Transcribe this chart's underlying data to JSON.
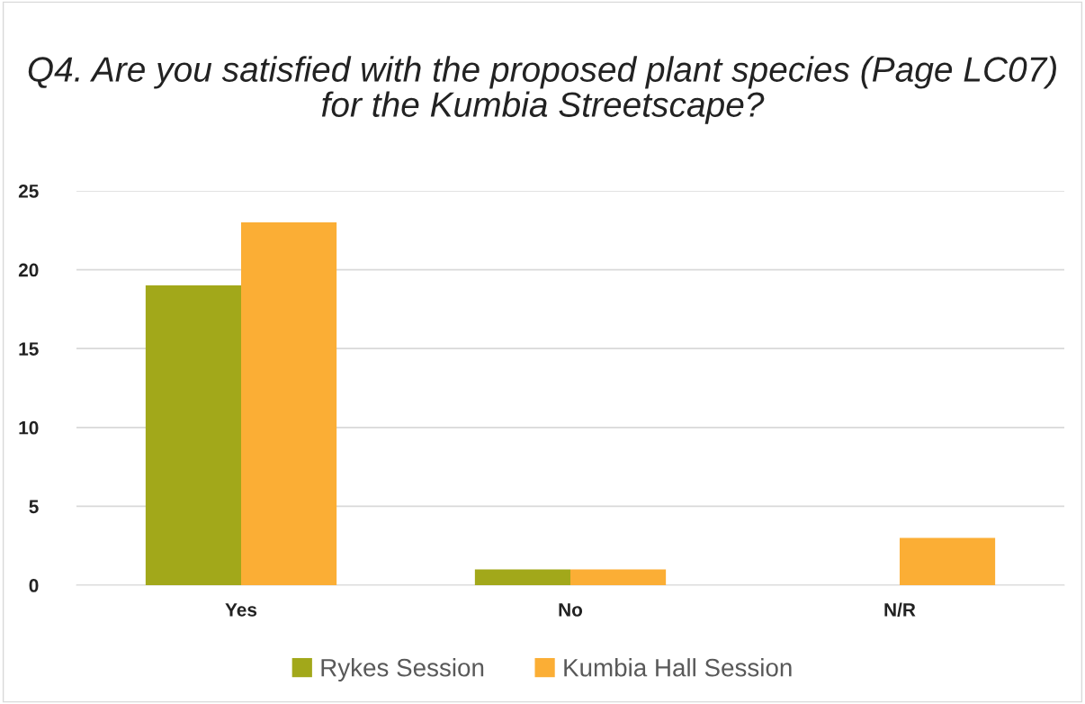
{
  "chart_data": {
    "type": "bar",
    "title": "Q4. Are you satisfied with the proposed plant species (Page LC07) for the Kumbia Streetscape?",
    "categories": [
      "Yes",
      "No",
      "N/R"
    ],
    "series": [
      {
        "name": "Rykes Session",
        "color": "#a2a81a",
        "values": [
          19,
          1,
          0
        ]
      },
      {
        "name": "Kumbia Hall Session",
        "color": "#fbae35",
        "values": [
          23,
          1,
          3
        ]
      }
    ],
    "ylim": [
      0,
      25
    ],
    "yticks": [
      0,
      5,
      10,
      15,
      20,
      25
    ],
    "grid": "y",
    "legend": "bottom"
  }
}
